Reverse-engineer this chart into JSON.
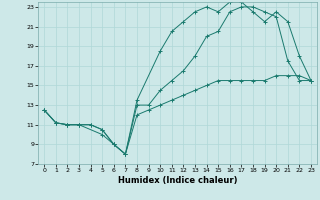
{
  "title": "",
  "xlabel": "Humidex (Indice chaleur)",
  "ylabel": "",
  "xlim": [
    -0.5,
    23.5
  ],
  "ylim": [
    7,
    23.5
  ],
  "yticks": [
    7,
    9,
    11,
    13,
    15,
    17,
    19,
    21,
    23
  ],
  "xticks": [
    0,
    1,
    2,
    3,
    4,
    5,
    6,
    7,
    8,
    9,
    10,
    11,
    12,
    13,
    14,
    15,
    16,
    17,
    18,
    19,
    20,
    21,
    22,
    23
  ],
  "bg_color": "#cde8e8",
  "grid_color": "#b0d8d8",
  "line_color": "#1a7a6e",
  "line1_x": [
    0,
    1,
    2,
    3,
    4,
    5,
    6,
    7,
    8,
    9,
    10,
    11,
    12,
    13,
    14,
    15,
    16,
    17,
    18,
    19,
    20,
    21,
    22,
    23
  ],
  "line1_y": [
    12.5,
    11.2,
    11.0,
    11.0,
    11.0,
    10.5,
    9.0,
    8.0,
    13.0,
    13.0,
    14.5,
    15.5,
    16.5,
    18.0,
    20.0,
    20.5,
    22.5,
    23.0,
    23.0,
    22.5,
    22.0,
    17.5,
    15.5,
    15.5
  ],
  "line2_x": [
    0,
    1,
    2,
    3,
    5,
    6,
    7,
    8,
    10,
    11,
    12,
    13,
    14,
    15,
    16,
    17,
    18,
    19,
    20,
    21,
    22,
    23
  ],
  "line2_y": [
    12.5,
    11.2,
    11.0,
    11.0,
    10.0,
    9.0,
    8.0,
    13.5,
    18.5,
    20.5,
    21.5,
    22.5,
    23.0,
    22.5,
    23.5,
    23.5,
    22.5,
    21.5,
    22.5,
    21.5,
    18.0,
    15.5
  ],
  "line3_x": [
    0,
    1,
    2,
    3,
    4,
    5,
    6,
    7,
    8,
    9,
    10,
    11,
    12,
    13,
    14,
    15,
    16,
    17,
    18,
    19,
    20,
    21,
    22,
    23
  ],
  "line3_y": [
    12.5,
    11.2,
    11.0,
    11.0,
    11.0,
    10.5,
    9.0,
    8.0,
    12.0,
    12.5,
    13.0,
    13.5,
    14.0,
    14.5,
    15.0,
    15.5,
    15.5,
    15.5,
    15.5,
    15.5,
    16.0,
    16.0,
    16.0,
    15.5
  ],
  "xlabel_fontsize": 6,
  "tick_fontsize": 4.5,
  "linewidth": 0.7,
  "markersize": 2.5
}
